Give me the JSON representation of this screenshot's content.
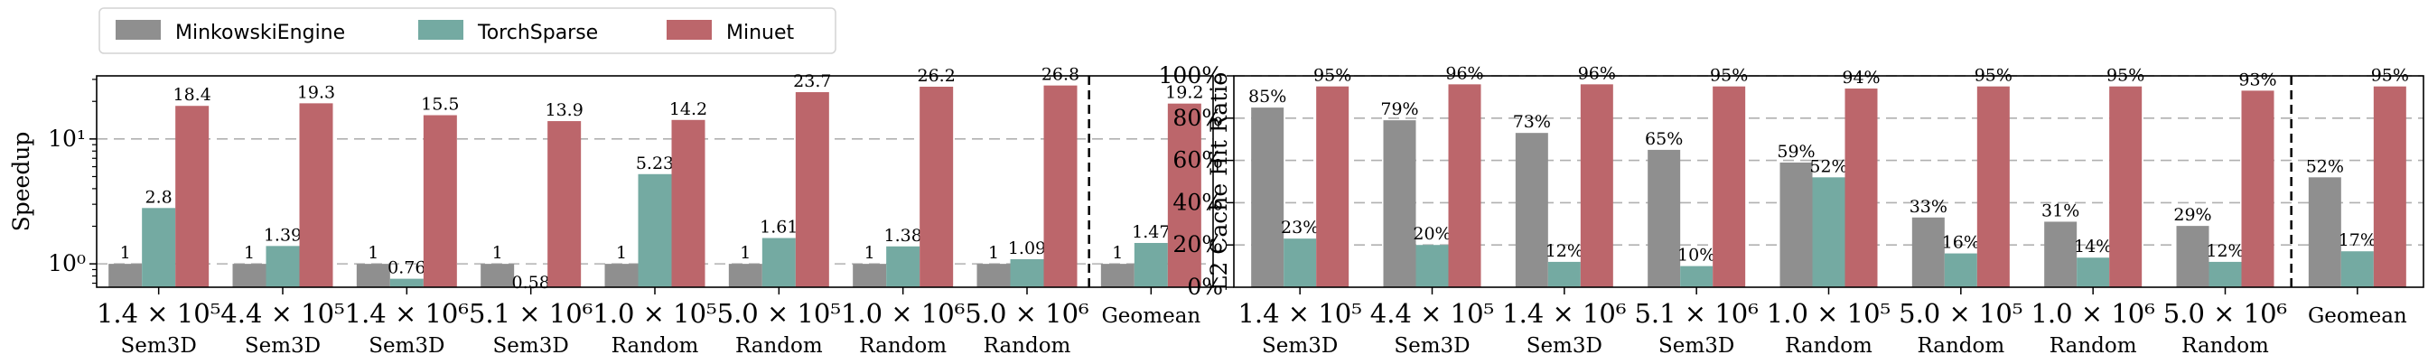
{
  "legend": [
    {
      "name": "MinkowskiEngine",
      "color": "#8f8f8f"
    },
    {
      "name": "TorchSparse",
      "color": "#74aaa2"
    },
    {
      "name": "Minuet",
      "color": "#bc666b"
    }
  ],
  "chart_data": [
    {
      "type": "bar",
      "yscale": "log",
      "ylabel": "Speedup",
      "ylim": [
        0.65,
        32
      ],
      "yticks": [
        {
          "value": 1,
          "label": "10⁰"
        },
        {
          "value": 10,
          "label": "10¹"
        }
      ],
      "grid": true,
      "categories": [
        {
          "main": "1.4 × 10⁵",
          "sub": "Sem3D"
        },
        {
          "main": "4.4 × 10⁵",
          "sub": "Sem3D"
        },
        {
          "main": "1.4 × 10⁶",
          "sub": "Sem3D"
        },
        {
          "main": "5.1 × 10⁶",
          "sub": "Sem3D"
        },
        {
          "main": "1.0 × 10⁵",
          "sub": "Random"
        },
        {
          "main": "5.0 × 10⁵",
          "sub": "Random"
        },
        {
          "main": "1.0 × 10⁶",
          "sub": "Random"
        },
        {
          "main": "5.0 × 10⁶",
          "sub": "Random"
        },
        {
          "main": "Geomean",
          "sub": ""
        }
      ],
      "series": [
        {
          "name": "MinkowskiEngine",
          "values": [
            1,
            1,
            1,
            1,
            1,
            1,
            1,
            1,
            1
          ],
          "labels": [
            "1",
            "1",
            "1",
            "1",
            "1",
            "1",
            "1",
            "1",
            "1"
          ]
        },
        {
          "name": "TorchSparse",
          "values": [
            2.8,
            1.39,
            0.76,
            0.58,
            5.23,
            1.61,
            1.38,
            1.09,
            1.47
          ],
          "labels": [
            "2.8",
            "1.39",
            "0.76",
            "0.58",
            "5.23",
            "1.61",
            "1.38",
            "1.09",
            "1.47"
          ]
        },
        {
          "name": "Minuet",
          "values": [
            18.4,
            19.3,
            15.5,
            13.9,
            14.2,
            23.7,
            26.2,
            26.8,
            19.2
          ],
          "labels": [
            "18.4",
            "19.3",
            "15.5",
            "13.9",
            "14.2",
            "23.7",
            "26.2",
            "26.8",
            "19.2"
          ]
        }
      ]
    },
    {
      "type": "bar",
      "yscale": "linear",
      "ylabel": "L2 Cache Hit Ratio",
      "ylim": [
        0,
        100
      ],
      "yticks": [
        {
          "value": 0,
          "label": "0%"
        },
        {
          "value": 20,
          "label": "20%"
        },
        {
          "value": 40,
          "label": "40%"
        },
        {
          "value": 60,
          "label": "60%"
        },
        {
          "value": 80,
          "label": "80%"
        },
        {
          "value": 100,
          "label": "100%"
        }
      ],
      "grid": true,
      "categories": [
        {
          "main": "1.4 × 10⁵",
          "sub": "Sem3D"
        },
        {
          "main": "4.4 × 10⁵",
          "sub": "Sem3D"
        },
        {
          "main": "1.4 × 10⁶",
          "sub": "Sem3D"
        },
        {
          "main": "5.1 × 10⁶",
          "sub": "Sem3D"
        },
        {
          "main": "1.0 × 10⁵",
          "sub": "Random"
        },
        {
          "main": "5.0 × 10⁵",
          "sub": "Random"
        },
        {
          "main": "1.0 × 10⁶",
          "sub": "Random"
        },
        {
          "main": "5.0 × 10⁶",
          "sub": "Random"
        },
        {
          "main": "Geomean",
          "sub": ""
        }
      ],
      "series": [
        {
          "name": "MinkowskiEngine",
          "values": [
            85,
            79,
            73,
            65,
            59,
            33,
            31,
            29,
            52
          ],
          "labels": [
            "85%",
            "79%",
            "73%",
            "65%",
            "59%",
            "33%",
            "31%",
            "29%",
            "52%"
          ]
        },
        {
          "name": "TorchSparse",
          "values": [
            23,
            20,
            12,
            10,
            52,
            16,
            14,
            12,
            17
          ],
          "labels": [
            "23%",
            "20%",
            "12%",
            "10%",
            "52%",
            "16%",
            "14%",
            "12%",
            "17%"
          ]
        },
        {
          "name": "Minuet",
          "values": [
            95,
            96,
            96,
            95,
            94,
            95,
            95,
            93,
            95
          ],
          "labels": [
            "95%",
            "96%",
            "96%",
            "95%",
            "94%",
            "95%",
            "95%",
            "93%",
            "95%"
          ]
        }
      ]
    }
  ]
}
